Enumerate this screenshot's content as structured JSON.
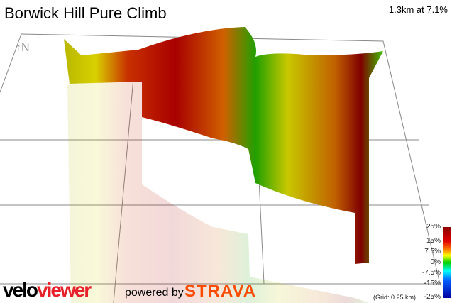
{
  "title": "Borwick Hill Pure Climb",
  "summary": "1.3km at 7.1%",
  "compass": "↑N",
  "legend": {
    "labels": [
      "25%",
      "15%",
      "7.5%",
      "0%",
      "-7.5%",
      "-15%",
      "-25%"
    ],
    "colors": [
      "#8b0000",
      "#e00000",
      "#ffff00",
      "#00d000",
      "#00ffff",
      "#0060ff",
      "#0000a0"
    ]
  },
  "grid_note": "(Grid: 0.25 km)",
  "branding": {
    "velo": "velo",
    "viewer": "viewer",
    "powered_by": "powered by",
    "strava": "STRAVA"
  }
}
